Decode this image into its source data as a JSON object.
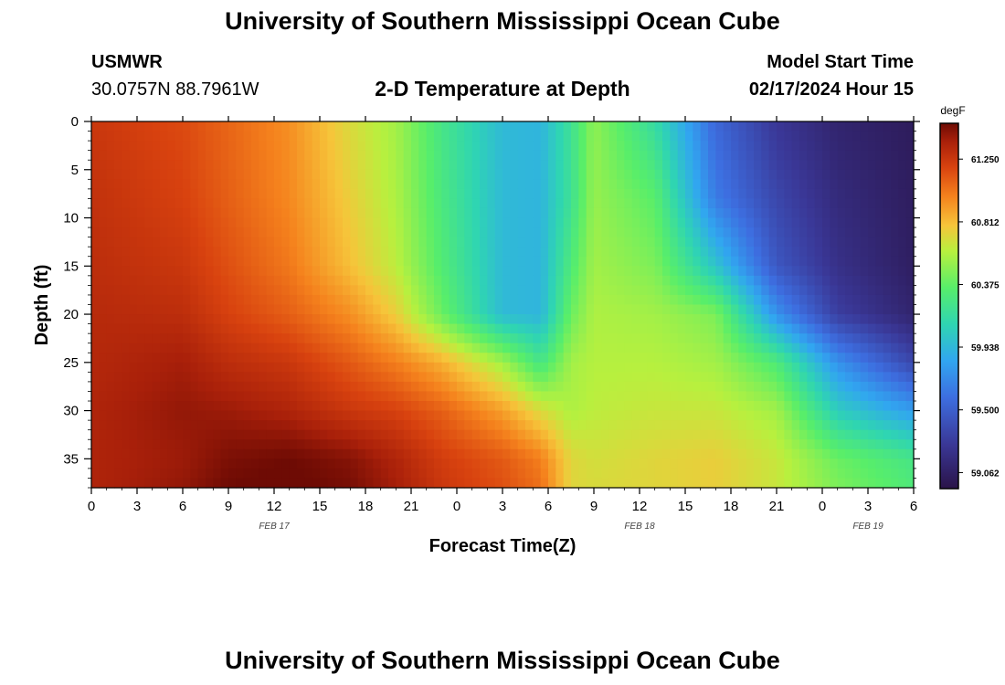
{
  "page": {
    "title": "University of Southern Mississippi Ocean Cube",
    "footer_title": "University of Southern Mississippi Ocean Cube",
    "station": "USMWR",
    "coords": "30.0757N  88.7961W",
    "model_label": "Model Start Time",
    "model_time": "02/17/2024 Hour 15"
  },
  "chart_data": {
    "type": "heatmap",
    "title": "2-D Temperature at Depth",
    "xlabel": "Forecast Time(Z)",
    "ylabel": "Depth (ft)",
    "x_range_hours": [
      0,
      54
    ],
    "y_range_ft": [
      0,
      38
    ],
    "x_ticks": [
      {
        "h": 0,
        "label": "0"
      },
      {
        "h": 3,
        "label": "3"
      },
      {
        "h": 6,
        "label": "6"
      },
      {
        "h": 9,
        "label": "9"
      },
      {
        "h": 12,
        "label": "12"
      },
      {
        "h": 15,
        "label": "15"
      },
      {
        "h": 18,
        "label": "18"
      },
      {
        "h": 21,
        "label": "21"
      },
      {
        "h": 24,
        "label": "0"
      },
      {
        "h": 27,
        "label": "3"
      },
      {
        "h": 30,
        "label": "6"
      },
      {
        "h": 33,
        "label": "9"
      },
      {
        "h": 36,
        "label": "12"
      },
      {
        "h": 39,
        "label": "15"
      },
      {
        "h": 42,
        "label": "18"
      },
      {
        "h": 45,
        "label": "21"
      },
      {
        "h": 48,
        "label": "0"
      },
      {
        "h": 51,
        "label": "3"
      },
      {
        "h": 54,
        "label": "6"
      }
    ],
    "date_labels": [
      {
        "h": 12,
        "label": "FEB 17"
      },
      {
        "h": 36,
        "label": "FEB 18"
      },
      {
        "h": 51,
        "label": "FEB 19"
      }
    ],
    "y_ticks": [
      0,
      5,
      10,
      15,
      20,
      25,
      30,
      35
    ],
    "colorbar": {
      "unit": "degF",
      "min": 58.95,
      "max": 61.5,
      "labels": [
        61.25,
        60.812,
        60.375,
        59.938,
        59.5,
        59.062
      ],
      "label_text": [
        "61.250",
        "60.812",
        "60.375",
        "59.938",
        "59.500",
        "59.062"
      ]
    },
    "grid_hours": [
      0,
      6,
      9,
      13,
      17,
      20,
      23,
      27,
      29.5,
      31.5,
      33,
      37,
      41,
      45,
      49,
      54
    ],
    "grid_depths": [
      0,
      8,
      15,
      20,
      25,
      30,
      35,
      38
    ],
    "grid_values": [
      [
        61.25,
        61.17,
        61.08,
        60.95,
        60.7,
        60.55,
        60.25,
        59.95,
        59.92,
        60.2,
        60.5,
        60.15,
        59.55,
        59.25,
        59.1,
        59.03
      ],
      [
        61.28,
        61.2,
        61.1,
        60.97,
        60.75,
        60.58,
        60.28,
        59.95,
        59.92,
        60.2,
        60.52,
        60.35,
        59.65,
        59.35,
        59.15,
        59.04
      ],
      [
        61.3,
        61.25,
        61.15,
        61.02,
        60.8,
        60.62,
        60.32,
        59.95,
        59.92,
        60.3,
        60.55,
        60.45,
        60.0,
        59.45,
        59.2,
        59.05
      ],
      [
        61.32,
        61.3,
        61.2,
        61.1,
        60.95,
        60.75,
        60.4,
        59.95,
        59.92,
        60.4,
        60.58,
        60.55,
        60.45,
        59.75,
        59.3,
        59.1
      ],
      [
        61.33,
        61.38,
        61.3,
        61.25,
        61.12,
        61.0,
        60.85,
        60.55,
        60.25,
        60.55,
        60.6,
        60.6,
        60.55,
        60.3,
        59.75,
        59.35
      ],
      [
        61.35,
        61.42,
        61.4,
        61.35,
        61.25,
        61.2,
        61.1,
        60.9,
        60.7,
        60.58,
        60.62,
        60.65,
        60.65,
        60.55,
        60.05,
        59.8
      ],
      [
        61.35,
        61.4,
        61.47,
        61.5,
        61.45,
        61.35,
        61.22,
        61.12,
        61.0,
        60.72,
        60.68,
        60.72,
        60.75,
        60.65,
        60.4,
        60.25
      ],
      [
        61.35,
        61.42,
        61.5,
        61.52,
        61.48,
        61.38,
        61.25,
        61.15,
        61.05,
        60.72,
        60.7,
        60.72,
        60.75,
        60.65,
        60.45,
        60.3
      ]
    ]
  }
}
